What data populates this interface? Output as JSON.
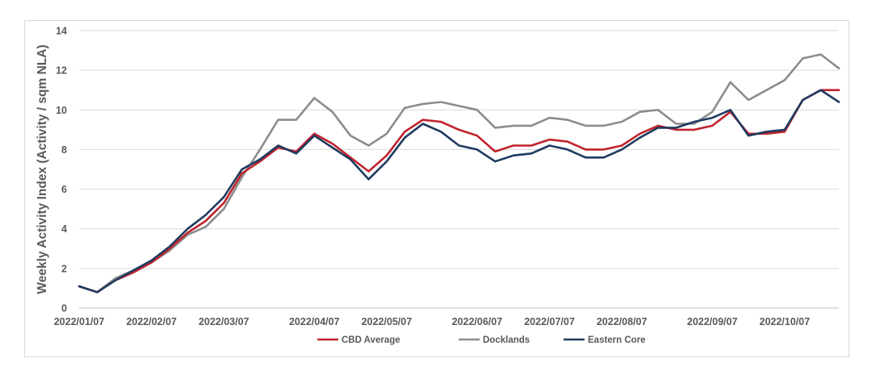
{
  "chart_data": {
    "type": "line",
    "title": "",
    "xlabel": "",
    "ylabel": "Weekly Activity Index (Activity / sqm NLA)",
    "ylim": [
      0,
      14
    ],
    "yticks": [
      0,
      2,
      4,
      6,
      8,
      10,
      12,
      14
    ],
    "x_tick_labels": [
      "2022/01/07",
      "2022/02/07",
      "2022/03/07",
      "2022/04/07",
      "2022/05/07",
      "2022/06/07",
      "2022/07/07",
      "2022/08/07",
      "2022/09/07",
      "2022/10/07"
    ],
    "x_tick_indices": [
      0,
      4,
      8,
      13,
      17,
      22,
      26,
      30,
      35,
      39
    ],
    "grid": "horizontal",
    "legend_position": "bottom",
    "series": [
      {
        "name": "CBD Average",
        "color": "#c0232c",
        "values": [
          1.1,
          0.8,
          1.4,
          1.8,
          2.3,
          3.0,
          3.8,
          4.4,
          5.3,
          6.8,
          7.4,
          8.1,
          7.9,
          8.8,
          8.3,
          7.6,
          6.9,
          7.7,
          8.9,
          9.5,
          9.4,
          9.0,
          8.7,
          7.9,
          8.2,
          8.2,
          8.5,
          8.4,
          8.0,
          8.0,
          8.2,
          8.8,
          9.2,
          9.0,
          9.0,
          9.2,
          9.9,
          8.8,
          8.8,
          8.9,
          10.5,
          11.0,
          11.0
        ]
      },
      {
        "name": "Docklands",
        "color": "#8c8c8c",
        "values": [
          1.1,
          0.8,
          1.5,
          1.9,
          2.3,
          2.9,
          3.7,
          4.1,
          5.0,
          6.6,
          8.0,
          9.5,
          9.5,
          10.6,
          9.9,
          8.7,
          8.2,
          8.8,
          10.1,
          10.3,
          10.4,
          10.2,
          10.0,
          9.1,
          9.2,
          9.2,
          9.6,
          9.5,
          9.2,
          9.2,
          9.4,
          9.9,
          10.0,
          9.3,
          9.3,
          9.9,
          11.4,
          10.5,
          11.0,
          11.5,
          12.6,
          12.8,
          12.1
        ]
      },
      {
        "name": "Eastern Core",
        "color": "#1f3a5f",
        "values": [
          1.1,
          0.8,
          1.4,
          1.9,
          2.4,
          3.1,
          4.0,
          4.7,
          5.6,
          7.0,
          7.5,
          8.2,
          7.8,
          8.7,
          8.1,
          7.5,
          6.5,
          7.4,
          8.6,
          9.3,
          8.9,
          8.2,
          8.0,
          7.4,
          7.7,
          7.8,
          8.2,
          8.0,
          7.6,
          7.6,
          8.0,
          8.6,
          9.1,
          9.1,
          9.4,
          9.6,
          10.0,
          8.7,
          8.9,
          9.0,
          10.5,
          11.0,
          10.4
        ]
      }
    ]
  }
}
